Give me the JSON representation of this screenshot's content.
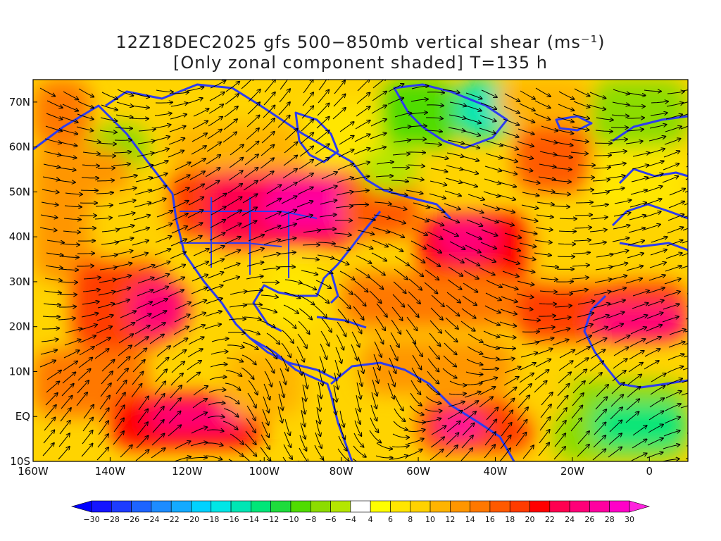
{
  "title": {
    "line1": "12Z18DEC2025 gfs 500−850mb vertical shear (ms⁻¹)",
    "line2": "[Only zonal component shaded] T=135 h"
  },
  "map": {
    "lon_range": [
      -160,
      10
    ],
    "lat_range": [
      -10,
      75
    ],
    "lat_ticks": [
      {
        "value": 70,
        "label": "70N"
      },
      {
        "value": 60,
        "label": "60N"
      },
      {
        "value": 50,
        "label": "50N"
      },
      {
        "value": 40,
        "label": "40N"
      },
      {
        "value": 30,
        "label": "30N"
      },
      {
        "value": 20,
        "label": "20N"
      },
      {
        "value": 10,
        "label": "10N"
      },
      {
        "value": 0,
        "label": "EQ"
      },
      {
        "value": -10,
        "label": "10S"
      }
    ],
    "lon_ticks": [
      {
        "value": -160,
        "label": "160W"
      },
      {
        "value": -140,
        "label": "140W"
      },
      {
        "value": -120,
        "label": "120W"
      },
      {
        "value": -100,
        "label": "100W"
      },
      {
        "value": -80,
        "label": "80W"
      },
      {
        "value": -60,
        "label": "60W"
      },
      {
        "value": -40,
        "label": "40W"
      },
      {
        "value": -20,
        "label": "20W"
      },
      {
        "value": 0,
        "label": "0"
      }
    ]
  },
  "colorbar": {
    "labels": [
      "-30",
      "-28",
      "-26",
      "-24",
      "-22",
      "-20",
      "-18",
      "-16",
      "-14",
      "-12",
      "-10",
      "-8",
      "-6",
      "-4",
      "4",
      "6",
      "8",
      "10",
      "12",
      "14",
      "16",
      "18",
      "20",
      "22",
      "24",
      "26",
      "28",
      "30"
    ],
    "colors": [
      "#1414ff",
      "#1e3cff",
      "#1e64ff",
      "#1e8cff",
      "#14aaff",
      "#00d2ff",
      "#00e6e6",
      "#00e6b4",
      "#00e678",
      "#1edc3c",
      "#50dc00",
      "#8cdc00",
      "#b4e600",
      "#ffffff",
      "#ffff00",
      "#ffe600",
      "#ffd200",
      "#ffb400",
      "#ff9600",
      "#ff7800",
      "#ff5a00",
      "#ff3c00",
      "#ff0000",
      "#ff0050",
      "#ff0078",
      "#ff00a0",
      "#ff00c8"
    ],
    "low_arrow_color": "#0000ff",
    "high_arrow_color": "#ff22dd"
  },
  "shading": {
    "cells": [
      {
        "lon": -160,
        "lat": 60,
        "w": 15,
        "h": 15,
        "v": 14
      },
      {
        "lon": -145,
        "lat": 55,
        "w": 15,
        "h": 10,
        "v": -8
      },
      {
        "lon": -160,
        "lat": 30,
        "w": 25,
        "h": 30,
        "v": 12
      },
      {
        "lon": -145,
        "lat": 35,
        "w": 20,
        "h": 15,
        "v": 8
      },
      {
        "lon": -150,
        "lat": 15,
        "w": 25,
        "h": 20,
        "v": 18
      },
      {
        "lon": -135,
        "lat": 18,
        "w": 15,
        "h": 12,
        "v": 24
      },
      {
        "lon": -125,
        "lat": 40,
        "w": 15,
        "h": 15,
        "v": 18
      },
      {
        "lon": -115,
        "lat": 38,
        "w": 40,
        "h": 17,
        "v": 22
      },
      {
        "lon": -100,
        "lat": 42,
        "w": 25,
        "h": 10,
        "v": 26
      },
      {
        "lon": -125,
        "lat": 55,
        "w": 40,
        "h": 10,
        "v": 10
      },
      {
        "lon": -90,
        "lat": 55,
        "w": 30,
        "h": 15,
        "v": 6
      },
      {
        "lon": -80,
        "lat": 40,
        "w": 20,
        "h": 15,
        "v": 16
      },
      {
        "lon": -75,
        "lat": 50,
        "w": 15,
        "h": 10,
        "v": -6
      },
      {
        "lon": -70,
        "lat": 60,
        "w": 20,
        "h": 15,
        "v": -10
      },
      {
        "lon": -60,
        "lat": 30,
        "w": 30,
        "h": 15,
        "v": 20
      },
      {
        "lon": -55,
        "lat": 35,
        "w": 15,
        "h": 10,
        "v": 24
      },
      {
        "lon": -35,
        "lat": 50,
        "w": 20,
        "h": 15,
        "v": 16
      },
      {
        "lon": -50,
        "lat": 62,
        "w": 15,
        "h": 13,
        "v": -16
      },
      {
        "lon": -40,
        "lat": 65,
        "w": 25,
        "h": 10,
        "v": 10
      },
      {
        "lon": -15,
        "lat": 60,
        "w": 25,
        "h": 15,
        "v": -8
      },
      {
        "lon": -15,
        "lat": 45,
        "w": 25,
        "h": 15,
        "v": 6
      },
      {
        "lon": -30,
        "lat": 30,
        "w": 20,
        "h": 15,
        "v": 8
      },
      {
        "lon": -35,
        "lat": 17,
        "w": 45,
        "h": 13,
        "v": 18
      },
      {
        "lon": -15,
        "lat": 17,
        "w": 25,
        "h": 8,
        "v": 24
      },
      {
        "lon": -80,
        "lat": 20,
        "w": 45,
        "h": 12,
        "v": 14
      },
      {
        "lon": -75,
        "lat": 5,
        "w": 40,
        "h": 12,
        "v": 12
      },
      {
        "lon": -160,
        "lat": 0,
        "w": 30,
        "h": 15,
        "v": 14
      },
      {
        "lon": -140,
        "lat": -7,
        "w": 40,
        "h": 12,
        "v": 20
      },
      {
        "lon": -130,
        "lat": -3,
        "w": 25,
        "h": 6,
        "v": 24
      },
      {
        "lon": -110,
        "lat": 0,
        "w": 20,
        "h": 15,
        "v": 10
      },
      {
        "lon": -100,
        "lat": 20,
        "w": 15,
        "h": 15,
        "v": 6
      },
      {
        "lon": -60,
        "lat": -8,
        "w": 30,
        "h": 12,
        "v": 18
      },
      {
        "lon": -55,
        "lat": -5,
        "w": 12,
        "h": 6,
        "v": 26
      },
      {
        "lon": -25,
        "lat": -10,
        "w": 35,
        "h": 18,
        "v": -8
      },
      {
        "lon": -15,
        "lat": -7,
        "w": 25,
        "h": 10,
        "v": -14
      },
      {
        "lon": -35,
        "lat": 0,
        "w": 15,
        "h": 8,
        "v": 8
      }
    ]
  }
}
